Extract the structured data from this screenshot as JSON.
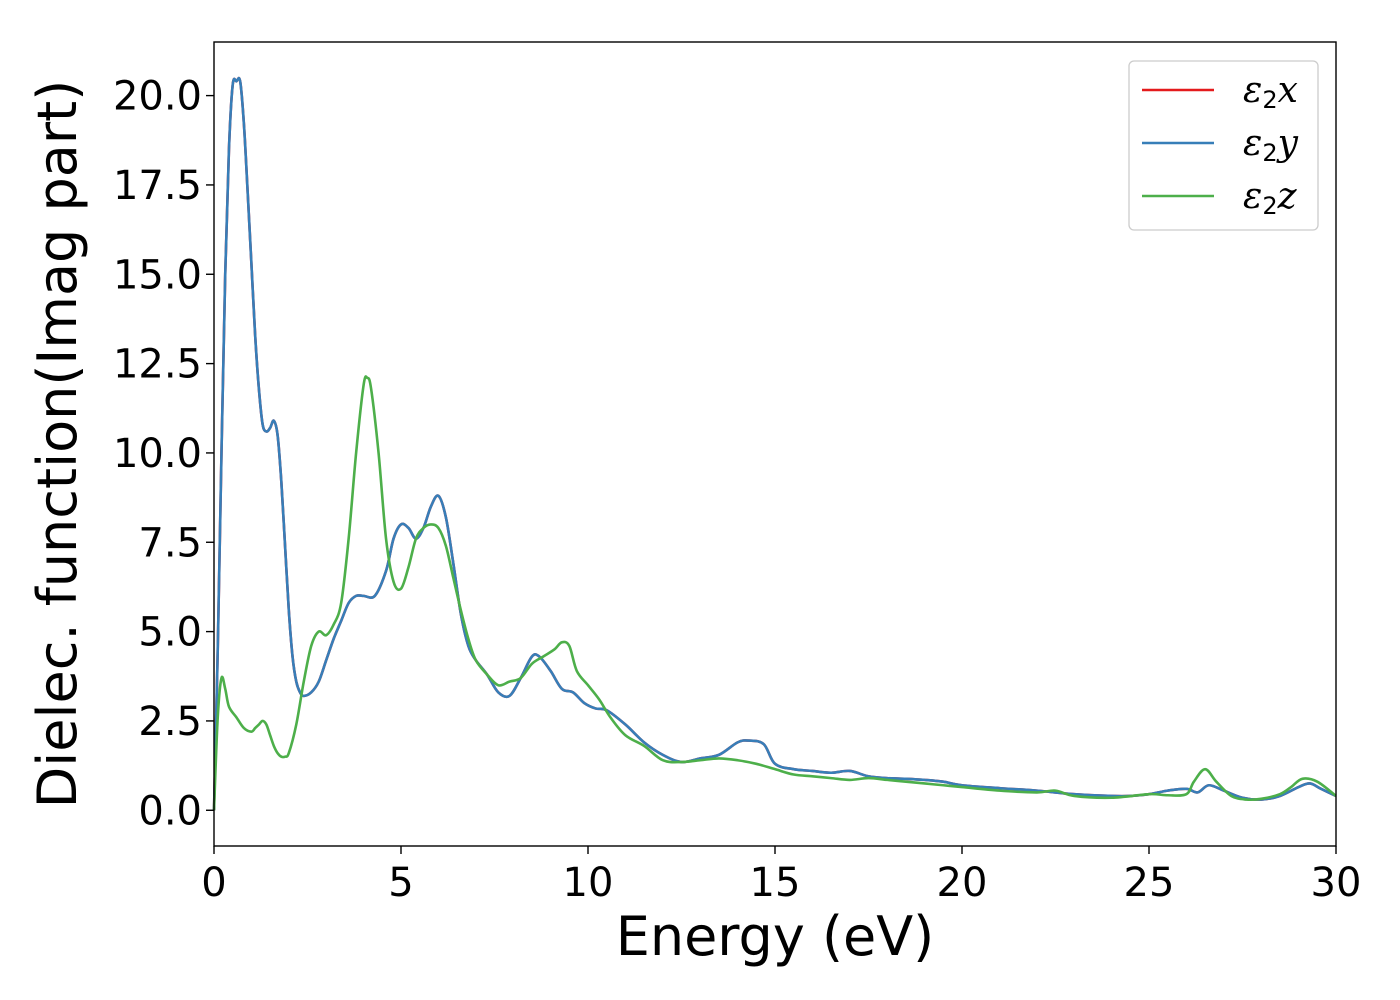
{
  "chart_data": {
    "type": "line",
    "xlabel": "Energy (eV)",
    "ylabel": "Dielec. function(Imag part)",
    "xlim": [
      0,
      30
    ],
    "ylim": [
      -1,
      21.5
    ],
    "xticks": [
      0,
      5,
      10,
      15,
      20,
      25,
      30
    ],
    "xtick_labels": [
      "0",
      "5",
      "10",
      "15",
      "20",
      "25",
      "30"
    ],
    "yticks": [
      0,
      2.5,
      5,
      7.5,
      10,
      12.5,
      15,
      17.5,
      20
    ],
    "ytick_labels": [
      "0.0",
      "2.5",
      "5.0",
      "7.5",
      "10.0",
      "12.5",
      "15.0",
      "17.5",
      "20.0"
    ],
    "grid": false,
    "legend_position": "top-right",
    "series": [
      {
        "name": "ε2x",
        "label_base": "ε",
        "label_sub": "2",
        "label_var": "x",
        "color": "#e41a1c",
        "x": [
          0,
          0.1,
          0.2,
          0.3,
          0.4,
          0.5,
          0.6,
          0.7,
          0.8,
          0.9,
          1.0,
          1.1,
          1.2,
          1.3,
          1.4,
          1.5,
          1.6,
          1.7,
          1.8,
          1.9,
          2.0,
          2.1,
          2.2,
          2.3,
          2.4,
          2.6,
          2.8,
          3.0,
          3.2,
          3.4,
          3.6,
          3.8,
          4.0,
          4.3,
          4.6,
          4.8,
          5.0,
          5.2,
          5.4,
          5.6,
          5.8,
          6.0,
          6.2,
          6.4,
          6.6,
          6.8,
          7.0,
          7.3,
          7.6,
          7.9,
          8.2,
          8.5,
          8.7,
          9.0,
          9.3,
          9.6,
          9.9,
          10.2,
          10.5,
          11.0,
          11.5,
          12.0,
          12.5,
          13.0,
          13.5,
          14.0,
          14.3,
          14.7,
          15.0,
          15.5,
          16.0,
          16.5,
          17.0,
          17.5,
          18.0,
          18.5,
          19.0,
          19.5,
          20.0,
          21.0,
          22.0,
          23.0,
          24.0,
          24.5,
          25.0,
          25.5,
          26.0,
          26.3,
          26.6,
          27.0,
          27.5,
          28.0,
          28.5,
          29.0,
          29.3,
          29.6,
          30.0
        ],
        "y": [
          0,
          4.5,
          10,
          15,
          18.5,
          20.3,
          20.4,
          20.4,
          19.2,
          17.3,
          15.3,
          13.3,
          11.8,
          10.8,
          10.6,
          10.7,
          10.9,
          10.5,
          9.2,
          7.4,
          5.6,
          4.3,
          3.6,
          3.3,
          3.2,
          3.3,
          3.6,
          4.2,
          4.8,
          5.3,
          5.8,
          6.0,
          6.0,
          6.0,
          6.7,
          7.6,
          8.0,
          7.9,
          7.6,
          7.9,
          8.5,
          8.8,
          8.2,
          6.9,
          5.5,
          4.6,
          4.2,
          3.8,
          3.3,
          3.2,
          3.7,
          4.3,
          4.3,
          3.9,
          3.4,
          3.3,
          3.0,
          2.85,
          2.8,
          2.4,
          1.9,
          1.55,
          1.35,
          1.45,
          1.55,
          1.9,
          1.95,
          1.85,
          1.3,
          1.15,
          1.1,
          1.05,
          1.1,
          0.95,
          0.9,
          0.88,
          0.85,
          0.8,
          0.7,
          0.62,
          0.55,
          0.45,
          0.4,
          0.4,
          0.45,
          0.55,
          0.6,
          0.5,
          0.7,
          0.55,
          0.35,
          0.3,
          0.4,
          0.65,
          0.75,
          0.6,
          0.4
        ]
      },
      {
        "name": "ε2y",
        "label_base": "ε",
        "label_sub": "2",
        "label_var": "y",
        "color": "#377eb8",
        "x": [
          0,
          0.1,
          0.2,
          0.3,
          0.4,
          0.5,
          0.6,
          0.7,
          0.8,
          0.9,
          1.0,
          1.1,
          1.2,
          1.3,
          1.4,
          1.5,
          1.6,
          1.7,
          1.8,
          1.9,
          2.0,
          2.1,
          2.2,
          2.3,
          2.4,
          2.6,
          2.8,
          3.0,
          3.2,
          3.4,
          3.6,
          3.8,
          4.0,
          4.3,
          4.6,
          4.8,
          5.0,
          5.2,
          5.4,
          5.6,
          5.8,
          6.0,
          6.2,
          6.4,
          6.6,
          6.8,
          7.0,
          7.3,
          7.6,
          7.9,
          8.2,
          8.5,
          8.7,
          9.0,
          9.3,
          9.6,
          9.9,
          10.2,
          10.5,
          11.0,
          11.5,
          12.0,
          12.5,
          13.0,
          13.5,
          14.0,
          14.3,
          14.7,
          15.0,
          15.5,
          16.0,
          16.5,
          17.0,
          17.5,
          18.0,
          18.5,
          19.0,
          19.5,
          20.0,
          21.0,
          22.0,
          23.0,
          24.0,
          24.5,
          25.0,
          25.5,
          26.0,
          26.3,
          26.6,
          27.0,
          27.5,
          28.0,
          28.5,
          29.0,
          29.3,
          29.6,
          30.0
        ],
        "y": [
          0,
          4.5,
          10,
          15,
          18.5,
          20.3,
          20.4,
          20.4,
          19.2,
          17.3,
          15.3,
          13.3,
          11.8,
          10.8,
          10.6,
          10.7,
          10.9,
          10.5,
          9.2,
          7.4,
          5.6,
          4.3,
          3.6,
          3.3,
          3.2,
          3.3,
          3.6,
          4.2,
          4.8,
          5.3,
          5.8,
          6.0,
          6.0,
          6.0,
          6.7,
          7.6,
          8.0,
          7.9,
          7.6,
          7.9,
          8.5,
          8.8,
          8.2,
          6.9,
          5.5,
          4.6,
          4.2,
          3.8,
          3.3,
          3.2,
          3.7,
          4.3,
          4.3,
          3.9,
          3.4,
          3.3,
          3.0,
          2.85,
          2.8,
          2.4,
          1.9,
          1.55,
          1.35,
          1.45,
          1.55,
          1.9,
          1.95,
          1.85,
          1.3,
          1.15,
          1.1,
          1.05,
          1.1,
          0.95,
          0.9,
          0.88,
          0.85,
          0.8,
          0.7,
          0.62,
          0.55,
          0.45,
          0.4,
          0.4,
          0.45,
          0.55,
          0.6,
          0.5,
          0.7,
          0.55,
          0.35,
          0.3,
          0.4,
          0.65,
          0.75,
          0.6,
          0.4
        ]
      },
      {
        "name": "ε2z",
        "label_base": "ε",
        "label_sub": "2",
        "label_var": "z",
        "color": "#4daf4a",
        "x": [
          0,
          0.1,
          0.2,
          0.3,
          0.4,
          0.6,
          0.8,
          1.0,
          1.1,
          1.2,
          1.3,
          1.4,
          1.5,
          1.6,
          1.7,
          1.8,
          1.9,
          2.0,
          2.2,
          2.4,
          2.6,
          2.8,
          3.0,
          3.2,
          3.4,
          3.6,
          3.8,
          4.0,
          4.1,
          4.2,
          4.4,
          4.6,
          4.8,
          5.0,
          5.2,
          5.4,
          5.6,
          5.8,
          6.0,
          6.2,
          6.4,
          6.6,
          6.8,
          7.0,
          7.3,
          7.6,
          7.9,
          8.2,
          8.5,
          8.8,
          9.1,
          9.3,
          9.5,
          9.7,
          10.0,
          10.3,
          10.6,
          11.0,
          11.5,
          12.0,
          12.5,
          13.0,
          13.5,
          14.0,
          14.5,
          15.0,
          15.5,
          16.0,
          16.5,
          17.0,
          17.5,
          18.0,
          18.5,
          19.0,
          19.5,
          20.0,
          21.0,
          22.0,
          22.5,
          23.0,
          24.0,
          25.0,
          25.5,
          26.0,
          26.2,
          26.5,
          26.8,
          27.2,
          27.6,
          28.0,
          28.5,
          28.8,
          29.1,
          29.5,
          30.0
        ],
        "y": [
          0,
          2.6,
          3.7,
          3.4,
          2.9,
          2.6,
          2.3,
          2.2,
          2.3,
          2.4,
          2.5,
          2.4,
          2.1,
          1.8,
          1.6,
          1.5,
          1.5,
          1.6,
          2.4,
          3.6,
          4.6,
          5.0,
          4.9,
          5.2,
          5.8,
          7.6,
          10.0,
          11.9,
          12.1,
          11.8,
          10.0,
          7.6,
          6.4,
          6.2,
          6.8,
          7.6,
          7.9,
          8.0,
          7.9,
          7.4,
          6.5,
          5.6,
          4.8,
          4.2,
          3.8,
          3.5,
          3.6,
          3.7,
          4.1,
          4.3,
          4.5,
          4.7,
          4.6,
          3.9,
          3.5,
          3.1,
          2.6,
          2.1,
          1.8,
          1.4,
          1.35,
          1.4,
          1.45,
          1.4,
          1.3,
          1.15,
          1.0,
          0.95,
          0.9,
          0.85,
          0.9,
          0.85,
          0.8,
          0.75,
          0.7,
          0.65,
          0.55,
          0.5,
          0.55,
          0.4,
          0.35,
          0.45,
          0.42,
          0.45,
          0.8,
          1.15,
          0.8,
          0.4,
          0.3,
          0.32,
          0.45,
          0.65,
          0.88,
          0.8,
          0.4
        ]
      }
    ]
  }
}
